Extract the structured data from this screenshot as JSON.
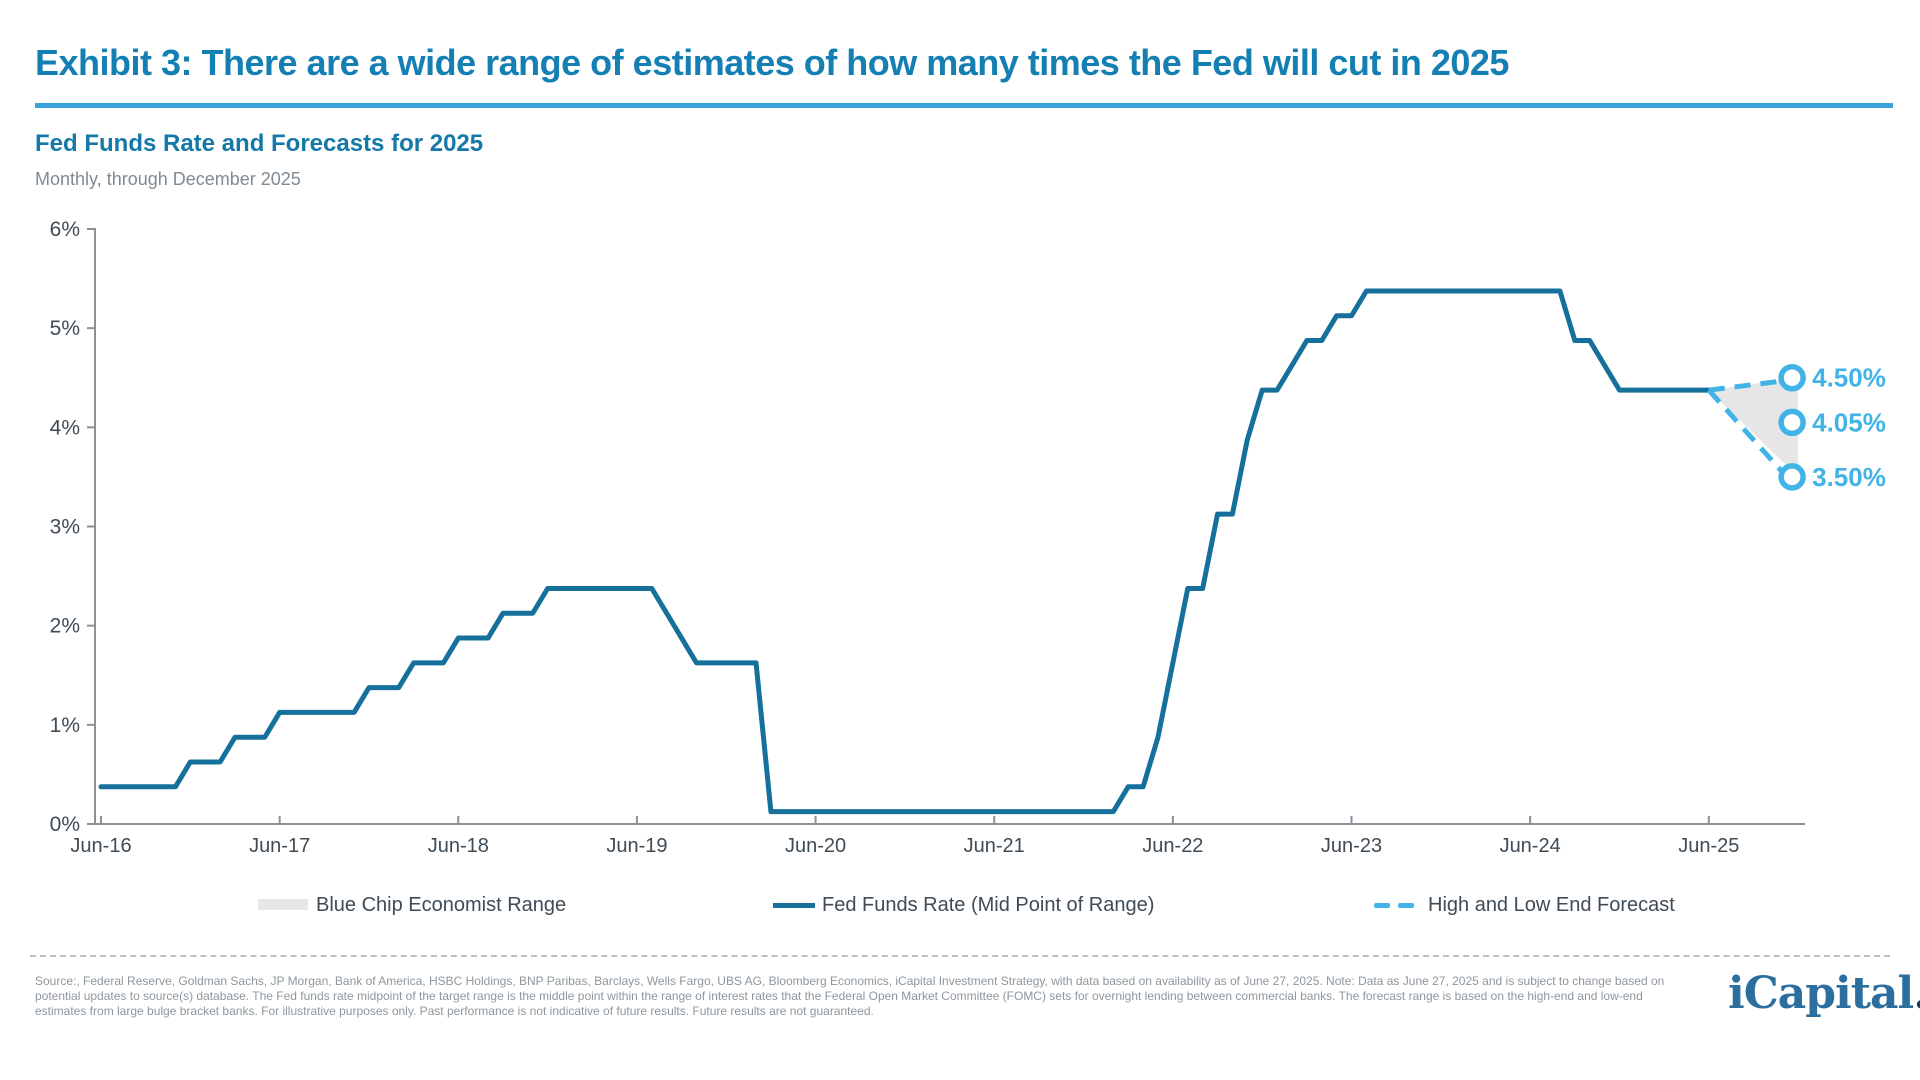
{
  "header": {
    "title": "Exhibit 3: There are a wide range of estimates of how many times the Fed will cut in 2025",
    "subtitle": "Fed Funds Rate and Forecasts for 2025",
    "caption": "Monthly, through December 2025"
  },
  "chart_data": {
    "type": "line",
    "title": "Fed Funds Rate and Forecasts for 2025",
    "subtitle": "Monthly, through December 2025",
    "xlabel": "",
    "ylabel": "",
    "ylim": [
      0,
      6
    ],
    "grid": false,
    "legend_position": "bottom",
    "y_ticks": [
      "6%",
      "5%",
      "4%",
      "3%",
      "2%",
      "1%",
      "0%"
    ],
    "x_ticks": [
      "Jun-16",
      "Jun-17",
      "Jun-18",
      "Jun-19",
      "Jun-20",
      "Jun-21",
      "Jun-22",
      "Jun-23",
      "Jun-24",
      "Jun-25"
    ],
    "series": [
      {
        "name": "Fed Funds Rate (Mid Point of Range)",
        "style": "solid",
        "color": "#15719b",
        "points": [
          {
            "t": "Jun-16",
            "i": 0,
            "v": 0.375
          },
          {
            "t": "Nov-16",
            "i": 5,
            "v": 0.375
          },
          {
            "t": "Dec-16",
            "i": 6,
            "v": 0.625
          },
          {
            "t": "Feb-17",
            "i": 8,
            "v": 0.625
          },
          {
            "t": "Mar-17",
            "i": 9,
            "v": 0.875
          },
          {
            "t": "May-17",
            "i": 11,
            "v": 0.875
          },
          {
            "t": "Jun-17",
            "i": 12,
            "v": 1.125
          },
          {
            "t": "Nov-17",
            "i": 17,
            "v": 1.125
          },
          {
            "t": "Dec-17",
            "i": 18,
            "v": 1.375
          },
          {
            "t": "Feb-18",
            "i": 20,
            "v": 1.375
          },
          {
            "t": "Mar-18",
            "i": 21,
            "v": 1.625
          },
          {
            "t": "May-18",
            "i": 23,
            "v": 1.625
          },
          {
            "t": "Jun-18",
            "i": 24,
            "v": 1.875
          },
          {
            "t": "Aug-18",
            "i": 26,
            "v": 1.875
          },
          {
            "t": "Sep-18",
            "i": 27,
            "v": 2.125
          },
          {
            "t": "Nov-18",
            "i": 29,
            "v": 2.125
          },
          {
            "t": "Dec-18",
            "i": 30,
            "v": 2.375
          },
          {
            "t": "Jul-19",
            "i": 37,
            "v": 2.375
          },
          {
            "t": "Aug-19",
            "i": 38,
            "v": 2.125
          },
          {
            "t": "Sep-19",
            "i": 39,
            "v": 1.875
          },
          {
            "t": "Oct-19",
            "i": 40,
            "v": 1.625
          },
          {
            "t": "Feb-20",
            "i": 44,
            "v": 1.625
          },
          {
            "t": "Mar-20",
            "i": 45,
            "v": 0.125
          },
          {
            "t": "Feb-22",
            "i": 68,
            "v": 0.125
          },
          {
            "t": "Mar-22",
            "i": 69,
            "v": 0.375
          },
          {
            "t": "Apr-22",
            "i": 70,
            "v": 0.375
          },
          {
            "t": "May-22",
            "i": 71,
            "v": 0.875
          },
          {
            "t": "Jun-22",
            "i": 72,
            "v": 1.625
          },
          {
            "t": "Jul-22",
            "i": 73,
            "v": 2.375
          },
          {
            "t": "Aug-22",
            "i": 74,
            "v": 2.375
          },
          {
            "t": "Sep-22",
            "i": 75,
            "v": 3.125
          },
          {
            "t": "Oct-22",
            "i": 76,
            "v": 3.125
          },
          {
            "t": "Nov-22",
            "i": 77,
            "v": 3.875
          },
          {
            "t": "Dec-22",
            "i": 78,
            "v": 4.375
          },
          {
            "t": "Jan-23",
            "i": 79,
            "v": 4.375
          },
          {
            "t": "Feb-23",
            "i": 80,
            "v": 4.625
          },
          {
            "t": "Mar-23",
            "i": 81,
            "v": 4.875
          },
          {
            "t": "Apr-23",
            "i": 82,
            "v": 4.875
          },
          {
            "t": "May-23",
            "i": 83,
            "v": 5.125
          },
          {
            "t": "Jun-23",
            "i": 84,
            "v": 5.125
          },
          {
            "t": "Jul-23",
            "i": 85,
            "v": 5.375
          },
          {
            "t": "Aug-24",
            "i": 98,
            "v": 5.375
          },
          {
            "t": "Sep-24",
            "i": 99,
            "v": 4.875
          },
          {
            "t": "Oct-24",
            "i": 100,
            "v": 4.875
          },
          {
            "t": "Nov-24",
            "i": 101,
            "v": 4.625
          },
          {
            "t": "Dec-24",
            "i": 102,
            "v": 4.375
          },
          {
            "t": "Jun-25",
            "i": 108,
            "v": 4.375
          }
        ]
      }
    ],
    "forecast": {
      "name": "High and Low End Forecast",
      "style": "dashed",
      "color": "#41b3e6",
      "from": {
        "t": "Jun-25",
        "i": 108,
        "v": 4.375
      },
      "to": {
        "t": "Dec-25",
        "i": 114
      },
      "high": {
        "v": 4.5,
        "label": "4.50%"
      },
      "mid": {
        "v": 4.05,
        "label": "4.05%"
      },
      "low": {
        "v": 3.5,
        "label": "3.50%"
      }
    },
    "range_band": {
      "name": "Blue Chip Economist Range",
      "color": "#e6e6e6"
    }
  },
  "legend": {
    "items": [
      {
        "label": "Blue Chip Economist Range",
        "swatch": "gray-box"
      },
      {
        "label": "Fed Funds Rate (Mid Point of Range)",
        "swatch": "solid-line"
      },
      {
        "label": "High and Low End Forecast",
        "swatch": "dashed-line"
      }
    ]
  },
  "footer": {
    "source_lines": [
      "Source:, Federal Reserve, Goldman Sachs, JP Morgan, Bank of America, HSBC Holdings, BNP Paribas, Barclays, Wells Fargo, UBS AG, Bloomberg Economics, iCapital Investment Strategy, with data based on availability as of June 27, 2025. Note: Data as June 27, 2025 and is subject to change based on",
      "potential updates to source(s) database. The Fed funds rate midpoint of the target range is the middle point within the range of interest rates that the Federal Open Market Committee (FOMC) sets for overnight lending between commercial banks. The forecast range is based on the high-end and low-end",
      "estimates from large bulge bracket banks. For illustrative purposes only. Past performance is not indicative of future results. Future results are not guaranteed."
    ],
    "logo_text": "iCapital",
    "logo_dot": "."
  },
  "colors": {
    "title": "#147fb2",
    "title_rule": "#3aa3da",
    "subtitle": "#1478a8",
    "caption": "#7f8b94",
    "axis": "#8a9198",
    "axis_label": "#3f4b55",
    "legend_text": "#3f4b55",
    "line": "#15719b",
    "forecast_blue": "#41b3e6",
    "band_gray": "#e6e6e6",
    "footer_text": "#8e979e",
    "logo_blue": "#2c6f9f",
    "logo_dot_navy": "#173a5e"
  }
}
